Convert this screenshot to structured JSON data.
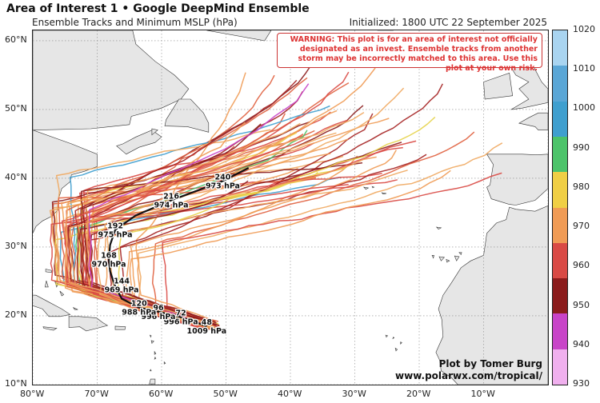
{
  "header": {
    "title": "Area of Interest 1 • Google DeepMind Ensemble",
    "subtitle": "Ensemble Tracks and Minimum MSLP (hPa)",
    "initialized": "Initialized: 1800 UTC 22 September 2025"
  },
  "warning": "WARNING: This plot is for an area of interest not officially designated as an invest. Ensemble tracks from another storm may be incorrectly matched to this area. Use this plot at your own risk.",
  "credit": {
    "line1": "Plot by Tomer Burg",
    "line2": "www.polarwx.com/tropical/"
  },
  "map": {
    "lon_range": [
      -80,
      0
    ],
    "lat_range": [
      10,
      61.5
    ],
    "land_color": "#e6e6e6",
    "ocean_color": "#ffffff",
    "lon_ticks": [
      "80°W",
      "70°W",
      "60°W",
      "50°W",
      "40°W",
      "30°W",
      "20°W",
      "10°W"
    ],
    "lat_ticks": [
      "10°N",
      "20°N",
      "30°N",
      "40°N",
      "50°N",
      "60°N"
    ]
  },
  "mean_track": {
    "points": [
      [
        -53,
        18.5
      ],
      [
        -57,
        19.8
      ],
      [
        -60.5,
        20.6
      ],
      [
        -63.5,
        21.2
      ],
      [
        -66.2,
        22.5
      ],
      [
        -67.3,
        24.5
      ],
      [
        -68,
        26.5
      ],
      [
        -68.2,
        28.2
      ],
      [
        -68,
        30.3
      ],
      [
        -67.2,
        32.5
      ],
      [
        -64,
        34.6
      ],
      [
        -58.5,
        36.8
      ],
      [
        -50.5,
        39.6
      ],
      [
        -46.5,
        41.5
      ]
    ],
    "labels": [
      {
        "hour": "48",
        "mslp": "1009 hPa",
        "lon": -53,
        "lat": 18.5
      },
      {
        "hour": "72",
        "mslp": "996 hPa",
        "lon": -57,
        "lat": 19.8
      },
      {
        "hour": "96",
        "mslp": "996 hPa",
        "lon": -60.5,
        "lat": 20.6
      },
      {
        "hour": "120",
        "mslp": "988 hPa",
        "lon": -63.5,
        "lat": 21.2
      },
      {
        "hour": "144",
        "mslp": "969 hPa",
        "lon": -66.2,
        "lat": 24.5
      },
      {
        "hour": "168",
        "mslp": "970 hPa",
        "lon": -68.2,
        "lat": 28.2
      },
      {
        "hour": "192",
        "mslp": "975 hPa",
        "lon": -67.2,
        "lat": 32.5
      },
      {
        "hour": "216",
        "mslp": "974 hPa",
        "lon": -58.5,
        "lat": 36.8
      },
      {
        "hour": "240",
        "mslp": "973 hPa",
        "lon": -50.5,
        "lat": 39.6
      }
    ]
  },
  "colorbar": {
    "ticks": [
      "1020",
      "1010",
      "1000",
      "990",
      "980",
      "970",
      "960",
      "950",
      "940",
      "930"
    ],
    "colors": [
      "#a9d4f0",
      "#5aa6d6",
      "#3f9fcf",
      "#4cc36a",
      "#f0cf45",
      "#f09b55",
      "#d94a45",
      "#8b1c1c",
      "#c844c8",
      "#f0b0ee"
    ]
  }
}
